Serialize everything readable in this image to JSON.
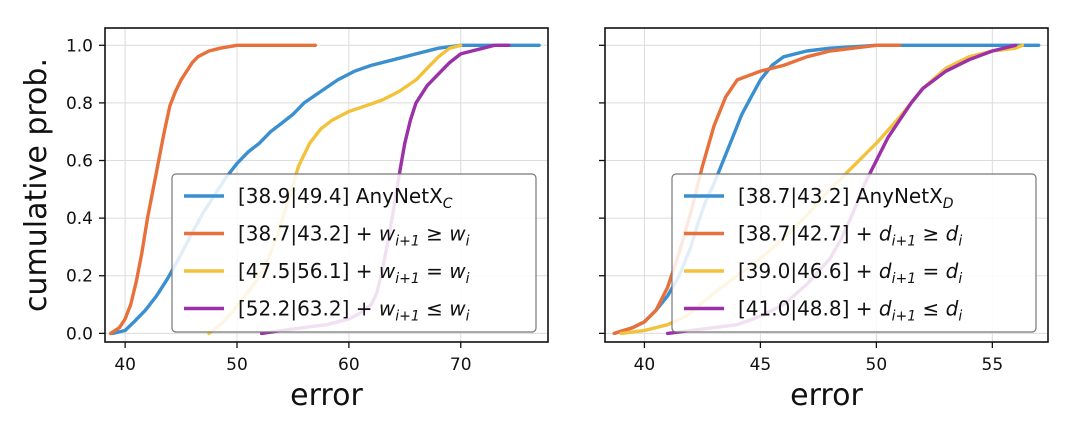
{
  "chart_data": [
    {
      "type": "line",
      "xlabel": "error",
      "ylabel": "cumulative prob.",
      "xlim": [
        38.2,
        77.8
      ],
      "ylim": [
        -0.03,
        1.06
      ],
      "xticks": [
        40,
        50,
        60,
        70
      ],
      "yticks": [
        0.0,
        0.2,
        0.4,
        0.6,
        0.8,
        1.0
      ],
      "grid": true,
      "legend_position": "lower-right",
      "series": [
        {
          "name": "[38.9|49.4] AnyNetX",
          "name_sub": "C",
          "name_math": "",
          "color": "#3a8fd0",
          "x": [
            38.9,
            40.0,
            40.8,
            41.8,
            42.8,
            43.8,
            44.8,
            46.0,
            47.0,
            48.0,
            49.0,
            50.0,
            51.0,
            52.0,
            53.0,
            54.0,
            55.0,
            56.0,
            57.5,
            59.0,
            60.5,
            62.0,
            64.0,
            66.0,
            68.0,
            70.0,
            72.0,
            74.0,
            77.0
          ],
          "y": [
            0.0,
            0.01,
            0.04,
            0.08,
            0.13,
            0.19,
            0.26,
            0.35,
            0.42,
            0.48,
            0.54,
            0.59,
            0.63,
            0.66,
            0.7,
            0.73,
            0.76,
            0.8,
            0.84,
            0.88,
            0.91,
            0.93,
            0.95,
            0.97,
            0.99,
            1.0,
            1.0,
            1.0,
            1.0
          ]
        },
        {
          "name": "[38.7|43.2] + ",
          "name_sub": "",
          "name_math": "w_{i+1} ≥ w_i",
          "color": "#e8703a",
          "x": [
            38.7,
            39.5,
            40.0,
            40.5,
            41.0,
            41.5,
            42.0,
            42.5,
            43.0,
            43.5,
            44.0,
            44.5,
            45.0,
            45.5,
            46.0,
            46.5,
            47.0,
            47.5,
            48.5,
            50.0,
            52.0,
            54.0,
            57.0
          ],
          "y": [
            0.0,
            0.02,
            0.05,
            0.1,
            0.18,
            0.28,
            0.4,
            0.5,
            0.6,
            0.7,
            0.79,
            0.84,
            0.88,
            0.91,
            0.94,
            0.96,
            0.97,
            0.98,
            0.99,
            1.0,
            1.0,
            1.0,
            1.0
          ]
        },
        {
          "name": "[47.5|56.1] + ",
          "name_sub": "",
          "name_math": "w_{i+1} = w_i",
          "color": "#f2c23c",
          "x": [
            47.5,
            48.5,
            49.5,
            50.5,
            51.5,
            52.5,
            53.5,
            54.5,
            55.5,
            56.5,
            57.5,
            58.5,
            60.0,
            61.5,
            63.0,
            64.5,
            66.0,
            67.0,
            68.0,
            69.0,
            70.0
          ],
          "y": [
            0.0,
            0.03,
            0.07,
            0.12,
            0.17,
            0.23,
            0.33,
            0.45,
            0.58,
            0.66,
            0.71,
            0.74,
            0.77,
            0.79,
            0.81,
            0.84,
            0.88,
            0.92,
            0.96,
            0.99,
            1.0
          ]
        },
        {
          "name": "[52.2|63.2] + ",
          "name_sub": "",
          "name_math": "w_{i+1} ≤ w_i",
          "color": "#9b30a8",
          "x": [
            52.2,
            54.0,
            56.0,
            58.0,
            60.0,
            61.0,
            62.0,
            62.5,
            63.0,
            63.5,
            64.0,
            64.5,
            65.0,
            65.5,
            66.0,
            67.0,
            68.0,
            69.0,
            70.0,
            71.0,
            72.0,
            73.0,
            74.3
          ],
          "y": [
            0.0,
            0.01,
            0.02,
            0.03,
            0.05,
            0.07,
            0.1,
            0.14,
            0.22,
            0.32,
            0.43,
            0.55,
            0.66,
            0.74,
            0.8,
            0.86,
            0.9,
            0.94,
            0.97,
            0.98,
            0.99,
            1.0,
            1.0
          ]
        }
      ]
    },
    {
      "type": "line",
      "xlabel": "error",
      "ylabel": "",
      "xlim": [
        38.3,
        57.4
      ],
      "ylim": [
        -0.03,
        1.06
      ],
      "xticks": [
        40,
        45,
        50,
        55
      ],
      "yticks": [
        0.0,
        0.2,
        0.4,
        0.6,
        0.8,
        1.0
      ],
      "grid": true,
      "legend_position": "lower-right",
      "series": [
        {
          "name": "[38.7|43.2] AnyNetX",
          "name_sub": "D",
          "name_math": "",
          "color": "#3a8fd0",
          "x": [
            38.7,
            39.5,
            40.0,
            40.5,
            41.0,
            41.5,
            42.0,
            42.3,
            42.6,
            43.0,
            43.4,
            43.8,
            44.2,
            44.6,
            45.0,
            45.5,
            46.0,
            47.0,
            48.0,
            50.0,
            53.0,
            57.0
          ],
          "y": [
            0.0,
            0.02,
            0.04,
            0.08,
            0.13,
            0.2,
            0.3,
            0.38,
            0.45,
            0.52,
            0.6,
            0.68,
            0.76,
            0.82,
            0.88,
            0.93,
            0.96,
            0.98,
            0.99,
            1.0,
            1.0,
            1.0
          ]
        },
        {
          "name": "[38.7|42.7] + ",
          "name_sub": "",
          "name_math": "d_{i+1} ≥ d_i",
          "color": "#e8703a",
          "x": [
            38.7,
            39.5,
            40.0,
            40.5,
            41.0,
            41.5,
            42.0,
            42.5,
            43.0,
            43.5,
            44.0,
            45.0,
            46.0,
            47.0,
            48.0,
            49.0,
            50.0,
            51.0
          ],
          "y": [
            0.0,
            0.02,
            0.04,
            0.08,
            0.16,
            0.28,
            0.42,
            0.58,
            0.72,
            0.82,
            0.88,
            0.91,
            0.93,
            0.96,
            0.98,
            0.99,
            1.0,
            1.0
          ]
        },
        {
          "name": "[39.0|46.6] + ",
          "name_sub": "",
          "name_math": "d_{i+1} = d_i",
          "color": "#f2c23c",
          "x": [
            39.0,
            40.0,
            41.0,
            41.8,
            42.4,
            43.0,
            44.0,
            45.0,
            46.0,
            47.0,
            48.0,
            49.0,
            50.0,
            51.0,
            52.0,
            53.0,
            54.0,
            55.0,
            56.0,
            56.3
          ],
          "y": [
            0.0,
            0.01,
            0.03,
            0.06,
            0.1,
            0.14,
            0.2,
            0.26,
            0.33,
            0.41,
            0.5,
            0.58,
            0.66,
            0.75,
            0.85,
            0.92,
            0.96,
            0.98,
            0.99,
            1.0
          ]
        },
        {
          "name": "[41.0|48.8] + ",
          "name_sub": "",
          "name_math": "d_{i+1} ≤ d_i",
          "color": "#9b30a8",
          "x": [
            41.0,
            42.0,
            43.0,
            44.0,
            45.0,
            46.0,
            47.0,
            48.0,
            48.5,
            49.0,
            49.5,
            50.0,
            50.5,
            51.0,
            51.5,
            52.0,
            53.0,
            54.0,
            55.0,
            56.0
          ],
          "y": [
            0.0,
            0.01,
            0.02,
            0.03,
            0.06,
            0.1,
            0.17,
            0.26,
            0.33,
            0.42,
            0.52,
            0.6,
            0.68,
            0.74,
            0.8,
            0.85,
            0.91,
            0.95,
            0.98,
            1.0
          ]
        }
      ]
    }
  ]
}
